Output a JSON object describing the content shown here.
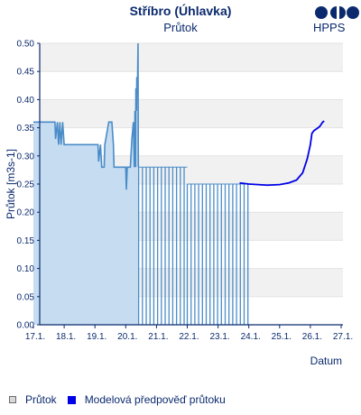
{
  "chart_data": {
    "type": "area",
    "title": "Stříbro (Úhlavka)",
    "subtitle": "Průtok",
    "xlabel": "Datum",
    "ylabel": "Průtok [m3s-1]",
    "logo_text": "HPPS",
    "ylim": [
      0,
      0.5
    ],
    "yticks": [
      "0.00",
      "0.05",
      "0.10",
      "0.15",
      "0.20",
      "0.25",
      "0.30",
      "0.35",
      "0.40",
      "0.45",
      "0.50"
    ],
    "xlim": [
      17,
      27.1
    ],
    "xticks": [
      "17.1.",
      "18.1.",
      "19.1.",
      "20.1.",
      "21.1.",
      "22.1.",
      "23.1.",
      "24.1.",
      "25.1.",
      "26.1.",
      "27.1."
    ],
    "grid": "horizontal bands",
    "legend_position": "bottom-left",
    "series": [
      {
        "name": "Průtok",
        "color": "#c6dcf1",
        "line_color": "#4a8cc8",
        "points": [
          [
            17.0,
            0.36
          ],
          [
            17.7,
            0.36
          ],
          [
            17.72,
            0.33
          ],
          [
            17.78,
            0.36
          ],
          [
            17.82,
            0.32
          ],
          [
            17.86,
            0.36
          ],
          [
            17.9,
            0.32
          ],
          [
            17.95,
            0.36
          ],
          [
            18.0,
            0.32
          ],
          [
            19.1,
            0.32
          ],
          [
            19.12,
            0.29
          ],
          [
            19.18,
            0.32
          ],
          [
            19.22,
            0.28
          ],
          [
            19.3,
            0.28
          ],
          [
            19.32,
            0.32
          ],
          [
            19.45,
            0.36
          ],
          [
            19.55,
            0.36
          ],
          [
            19.6,
            0.32
          ],
          [
            19.62,
            0.28
          ],
          [
            20.0,
            0.28
          ],
          [
            20.02,
            0.24
          ],
          [
            20.05,
            0.28
          ],
          [
            20.15,
            0.28
          ],
          [
            20.2,
            0.33
          ],
          [
            20.25,
            0.36
          ],
          [
            20.28,
            0.28
          ],
          [
            20.3,
            0.38
          ],
          [
            20.32,
            0.28
          ],
          [
            20.33,
            0.42
          ],
          [
            20.35,
            0.38
          ],
          [
            20.36,
            0.44
          ],
          [
            20.38,
            0.41
          ],
          [
            20.4,
            0.5
          ],
          [
            20.41,
            0.28
          ]
        ]
      },
      {
        "name": "Průtok",
        "style": "bars",
        "color": "#4a8cc8",
        "segments": [
          {
            "x_from": 20.42,
            "x_to": 22.0,
            "value": 0.28
          },
          {
            "x_from": 22.0,
            "x_to": 24.0,
            "value": 0.25
          }
        ]
      },
      {
        "name": "Modelová předpověď průtoku",
        "color": "#0000e6",
        "points": [
          [
            23.7,
            0.252
          ],
          [
            24.0,
            0.25
          ],
          [
            24.3,
            0.249
          ],
          [
            24.6,
            0.248
          ],
          [
            25.0,
            0.249
          ],
          [
            25.3,
            0.252
          ],
          [
            25.55,
            0.257
          ],
          [
            25.75,
            0.27
          ],
          [
            25.9,
            0.295
          ],
          [
            26.0,
            0.32
          ],
          [
            26.05,
            0.34
          ],
          [
            26.12,
            0.345
          ],
          [
            26.2,
            0.348
          ],
          [
            26.3,
            0.352
          ],
          [
            26.4,
            0.36
          ],
          [
            26.45,
            0.362
          ]
        ]
      }
    ]
  }
}
